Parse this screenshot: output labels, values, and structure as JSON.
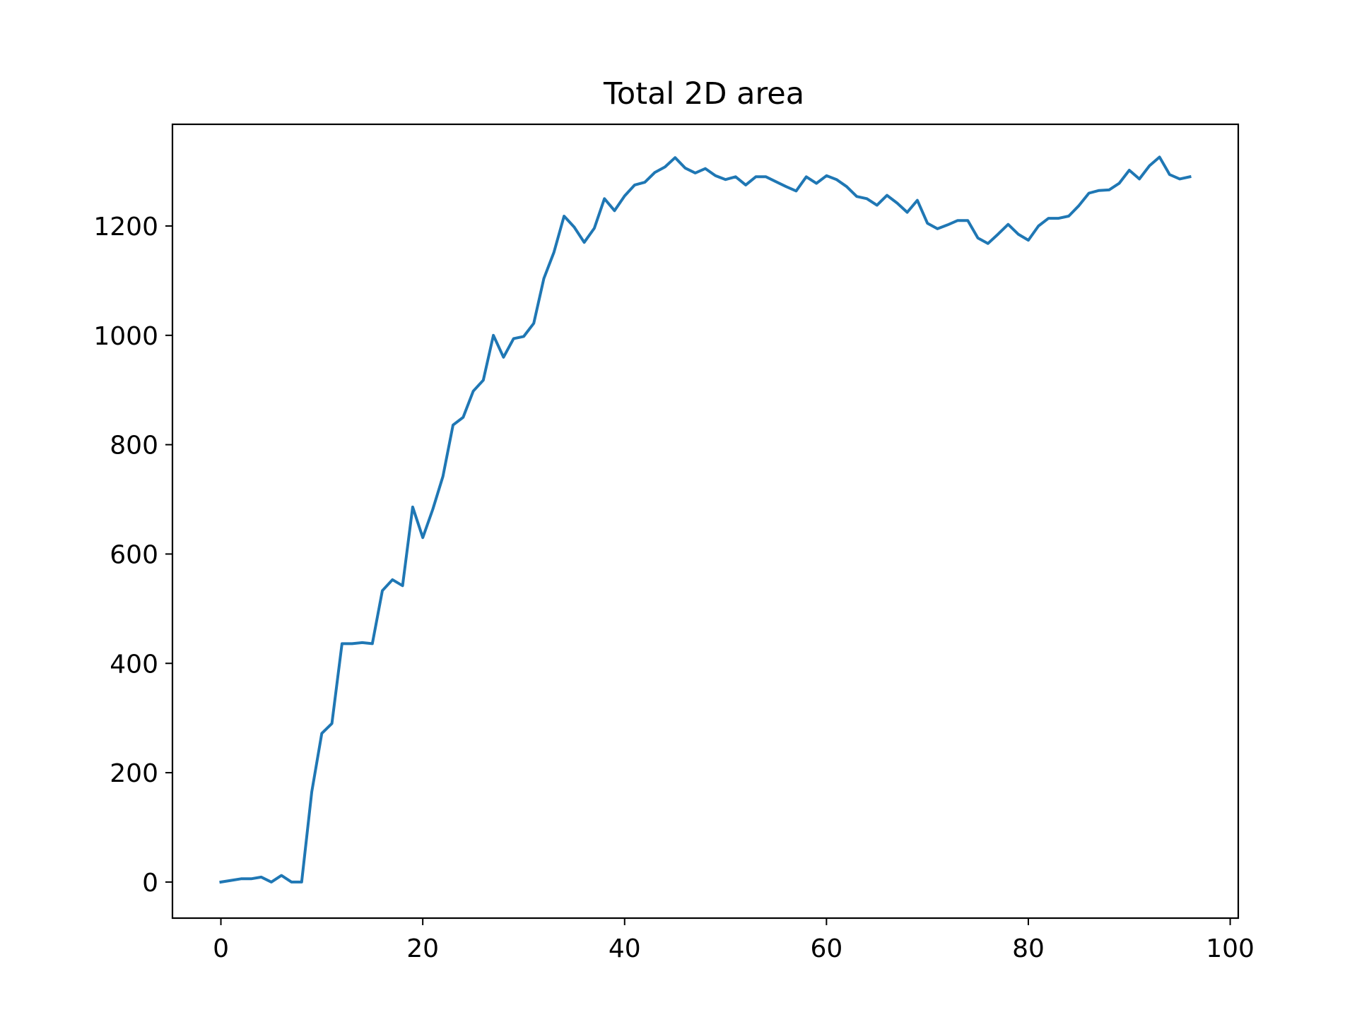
{
  "chart_data": {
    "type": "line",
    "title": "Total 2D area",
    "xlabel": "",
    "ylabel": "",
    "xlim": [
      -4.8,
      100.8
    ],
    "ylim": [
      -66,
      1386
    ],
    "xticks": [
      0,
      20,
      40,
      60,
      80,
      100
    ],
    "yticks": [
      0,
      200,
      400,
      600,
      800,
      1000,
      1200
    ],
    "grid": false,
    "colors": {
      "line": "#1f77b4",
      "axes": "#000000",
      "background": "#ffffff"
    },
    "series": [
      {
        "x": [
          0,
          1,
          2,
          3,
          4,
          5,
          6,
          7,
          8,
          9,
          10,
          11,
          12,
          13,
          14,
          15,
          16,
          17,
          18,
          19,
          20,
          21,
          22,
          23,
          24,
          25,
          26,
          27,
          28,
          29,
          30,
          31,
          32,
          33,
          34,
          35,
          36,
          37,
          38,
          39,
          40,
          41,
          42,
          43,
          44,
          45,
          46,
          47,
          48,
          49,
          50,
          51,
          52,
          53,
          54,
          55,
          56,
          57,
          58,
          59,
          60,
          61,
          62,
          63,
          64,
          65,
          66,
          67,
          68,
          69,
          70,
          71,
          72,
          73,
          74,
          75,
          76,
          77,
          78,
          79,
          80,
          81,
          82,
          83,
          84,
          85,
          86,
          87,
          88,
          89,
          90,
          91,
          92,
          93,
          94,
          95,
          96
        ],
        "values": [
          0,
          3,
          6,
          6,
          9,
          0,
          12,
          0,
          0,
          165,
          272,
          290,
          436,
          436,
          438,
          436,
          533,
          553,
          542,
          686,
          630,
          682,
          742,
          836,
          850,
          898,
          918,
          1000,
          960,
          994,
          998,
          1022,
          1104,
          1152,
          1218,
          1198,
          1170,
          1196,
          1250,
          1228,
          1255,
          1275,
          1280,
          1298,
          1308,
          1325,
          1306,
          1297,
          1305,
          1292,
          1285,
          1290,
          1275,
          1290,
          1290,
          1281,
          1272,
          1264,
          1290,
          1278,
          1292,
          1285,
          1272,
          1254,
          1250,
          1238,
          1256,
          1242,
          1225,
          1247,
          1205,
          1195,
          1202,
          1210,
          1210,
          1178,
          1168,
          1185,
          1203,
          1185,
          1174,
          1200,
          1214,
          1214,
          1218,
          1237,
          1260,
          1265,
          1266,
          1278,
          1302,
          1286,
          1310,
          1326,
          1294,
          1286,
          1290
        ]
      }
    ]
  }
}
